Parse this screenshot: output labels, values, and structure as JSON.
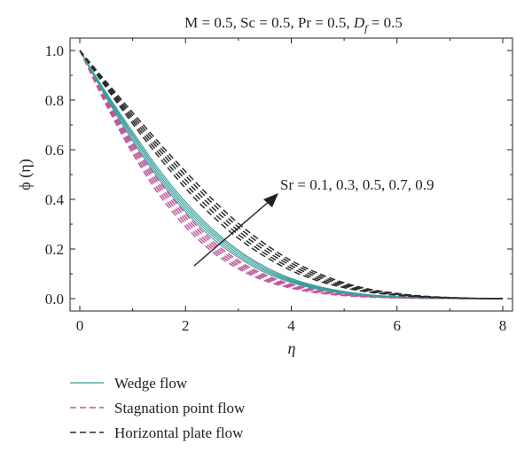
{
  "chart_data": {
    "type": "line",
    "title": "M = 0.5, Sc = 0.5, Pr = 0.5, D_f = 0.5",
    "title_parts": {
      "prefix": "M = 0.5, Sc = 0.5, Pr = 0.5, ",
      "D": "D",
      "f": "f",
      "suffix": " = 0.5"
    },
    "xlabel": "η",
    "ylabel": "ϕ (η)",
    "xlim": [
      0,
      8
    ],
    "ylim": [
      -0.05,
      1.05
    ],
    "xticks": [
      0,
      2,
      4,
      6,
      8
    ],
    "xtick_labels": [
      "0",
      "2",
      "4",
      "6",
      "8"
    ],
    "yticks": [
      0.0,
      0.2,
      0.4,
      0.6,
      0.8,
      1.0
    ],
    "ytick_labels": [
      "0.0",
      "0.2",
      "0.4",
      "0.6",
      "0.8",
      "1.0"
    ],
    "grid": false,
    "legend_position": "below",
    "annotation": "Sr = 0.1, 0.3, 0.5, 0.7, 0.9",
    "x": [
      0,
      0.5,
      1,
      1.5,
      2,
      2.5,
      3,
      3.5,
      4,
      4.5,
      5,
      5.5,
      6,
      6.5,
      7,
      7.5,
      8
    ],
    "series": [
      {
        "name": "Wedge flow",
        "color": "#3a9e9a",
        "dash": "solid",
        "curves": [
          [
            1.0,
            0.81,
            0.635,
            0.48,
            0.35,
            0.245,
            0.165,
            0.105,
            0.065,
            0.038,
            0.021,
            0.011,
            0.006,
            0.003,
            0.0015,
            0.0005,
            0.0
          ],
          [
            1.0,
            0.815,
            0.645,
            0.49,
            0.36,
            0.255,
            0.172,
            0.111,
            0.069,
            0.041,
            0.023,
            0.012,
            0.0065,
            0.0032,
            0.0015,
            0.0005,
            0.0
          ],
          [
            1.0,
            0.82,
            0.655,
            0.5,
            0.37,
            0.264,
            0.18,
            0.117,
            0.073,
            0.044,
            0.025,
            0.013,
            0.007,
            0.0035,
            0.0016,
            0.0005,
            0.0
          ],
          [
            1.0,
            0.825,
            0.663,
            0.51,
            0.38,
            0.273,
            0.188,
            0.123,
            0.077,
            0.047,
            0.027,
            0.014,
            0.0075,
            0.0037,
            0.0017,
            0.0005,
            0.0
          ],
          [
            1.0,
            0.83,
            0.672,
            0.52,
            0.39,
            0.282,
            0.195,
            0.129,
            0.081,
            0.05,
            0.029,
            0.015,
            0.008,
            0.004,
            0.0018,
            0.0005,
            0.0
          ]
        ]
      },
      {
        "name": "Stagnation point flow",
        "color": "#c0559a",
        "dash": "dashed",
        "curves": [
          [
            1.0,
            0.78,
            0.585,
            0.42,
            0.29,
            0.19,
            0.12,
            0.072,
            0.042,
            0.023,
            0.012,
            0.006,
            0.003,
            0.0015,
            0.0007,
            0.0002,
            0.0
          ],
          [
            1.0,
            0.787,
            0.597,
            0.434,
            0.303,
            0.201,
            0.128,
            0.078,
            0.046,
            0.026,
            0.014,
            0.007,
            0.0035,
            0.0017,
            0.0008,
            0.0002,
            0.0
          ],
          [
            1.0,
            0.794,
            0.609,
            0.448,
            0.316,
            0.212,
            0.136,
            0.084,
            0.05,
            0.028,
            0.015,
            0.008,
            0.004,
            0.0019,
            0.0009,
            0.0002,
            0.0
          ],
          [
            1.0,
            0.8,
            0.62,
            0.461,
            0.329,
            0.223,
            0.145,
            0.09,
            0.054,
            0.031,
            0.017,
            0.009,
            0.0045,
            0.0021,
            0.001,
            0.0003,
            0.0
          ],
          [
            1.0,
            0.806,
            0.63,
            0.474,
            0.342,
            0.234,
            0.153,
            0.096,
            0.058,
            0.034,
            0.019,
            0.01,
            0.005,
            0.0023,
            0.001,
            0.0003,
            0.0
          ]
        ]
      },
      {
        "name": "Horizontal plate flow",
        "color": "#2b2b2b",
        "dash": "dashed",
        "curves": [
          [
            1.0,
            0.85,
            0.705,
            0.57,
            0.445,
            0.335,
            0.243,
            0.17,
            0.113,
            0.072,
            0.044,
            0.025,
            0.013,
            0.006,
            0.0025,
            0.0008,
            0.0
          ],
          [
            1.0,
            0.856,
            0.716,
            0.585,
            0.462,
            0.352,
            0.258,
            0.182,
            0.123,
            0.079,
            0.049,
            0.028,
            0.015,
            0.007,
            0.003,
            0.0009,
            0.0
          ],
          [
            1.0,
            0.862,
            0.727,
            0.6,
            0.479,
            0.369,
            0.273,
            0.195,
            0.133,
            0.087,
            0.054,
            0.031,
            0.017,
            0.008,
            0.0035,
            0.001,
            0.0
          ],
          [
            1.0,
            0.868,
            0.738,
            0.614,
            0.496,
            0.386,
            0.288,
            0.208,
            0.143,
            0.095,
            0.059,
            0.034,
            0.019,
            0.009,
            0.004,
            0.0011,
            0.0
          ],
          [
            1.0,
            0.874,
            0.75,
            0.628,
            0.512,
            0.402,
            0.303,
            0.221,
            0.153,
            0.103,
            0.064,
            0.037,
            0.021,
            0.01,
            0.0045,
            0.0012,
            0.0
          ]
        ]
      }
    ]
  }
}
